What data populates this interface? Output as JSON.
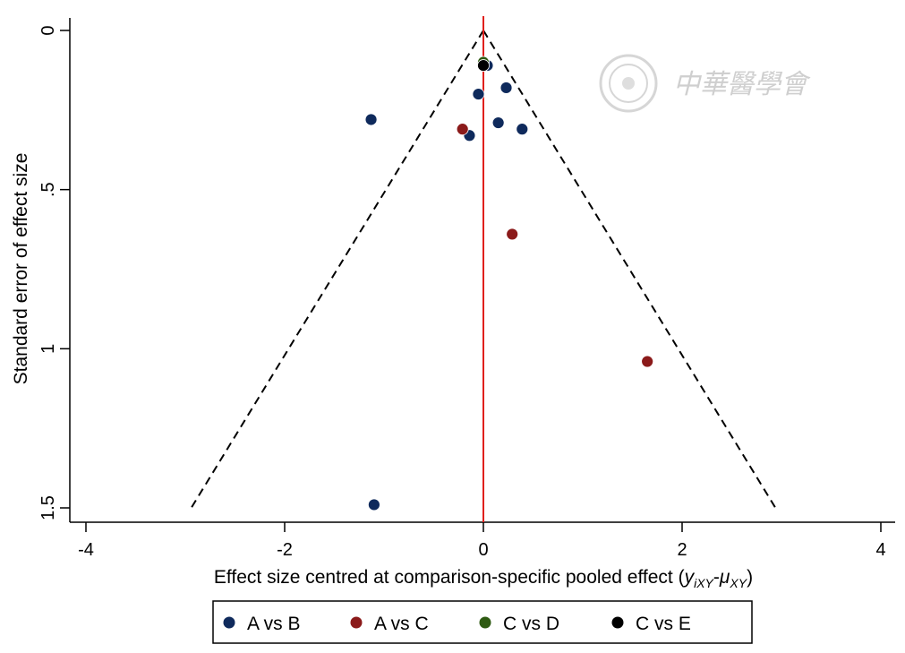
{
  "chart_data": {
    "type": "scatter",
    "title": "",
    "xlabel": "Effect size centred at comparison-specific pooled effect (",
    "xlabel_math_y": "y",
    "xlabel_math_y_sub": "iXY",
    "xlabel_math_sep": "-",
    "xlabel_math_mu": "μ",
    "xlabel_math_mu_sub": "XY",
    "xlabel_close": ")",
    "ylabel": "Standard error of effect size",
    "xlim": [
      -4,
      4
    ],
    "ylim": [
      1.5,
      0
    ],
    "y_reversed": true,
    "xticks": [
      -4,
      -2,
      0,
      2,
      4
    ],
    "xtick_labels": [
      "-4",
      "-2",
      "0",
      "2",
      "4"
    ],
    "yticks": [
      0,
      0.5,
      1,
      1.5
    ],
    "ytick_labels": [
      "0",
      ".5",
      "1",
      "1.5"
    ],
    "grid": false,
    "legend_position": "bottom",
    "reference_line": {
      "x": 0,
      "color": "#e0201c"
    },
    "funnel": {
      "apex": [
        0,
        0
      ],
      "half_width_at_se_1_5": 2.94,
      "style": "dashed",
      "color": "#000000"
    },
    "series": [
      {
        "name": "A vs B",
        "color": "#0f2a5c",
        "points": [
          {
            "x": 0.04,
            "y": 0.11
          },
          {
            "x": 0.23,
            "y": 0.18
          },
          {
            "x": -0.05,
            "y": 0.2
          },
          {
            "x": -1.13,
            "y": 0.28
          },
          {
            "x": 0.15,
            "y": 0.29
          },
          {
            "x": 0.39,
            "y": 0.31
          },
          {
            "x": -0.14,
            "y": 0.33
          },
          {
            "x": -1.1,
            "y": 1.49
          }
        ]
      },
      {
        "name": "A vs C",
        "color": "#8b1a1a",
        "points": [
          {
            "x": -0.21,
            "y": 0.31
          },
          {
            "x": 0.29,
            "y": 0.64
          },
          {
            "x": 1.65,
            "y": 1.04
          }
        ]
      },
      {
        "name": "C vs D",
        "color": "#2e5a12",
        "points": [
          {
            "x": 0.0,
            "y": 0.1
          }
        ]
      },
      {
        "name": "C vs E",
        "color": "#000000",
        "points": [
          {
            "x": 0.0,
            "y": 0.11
          }
        ]
      }
    ]
  },
  "watermark": {
    "text": "中華醫學會",
    "icon": "seal-emblem-icon"
  }
}
